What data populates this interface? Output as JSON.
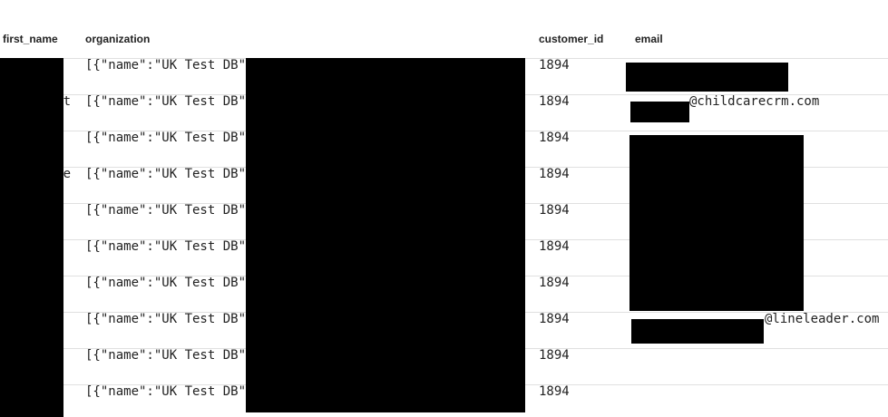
{
  "table": {
    "headers": [
      "first_name",
      "organization",
      "customer_id",
      "email"
    ],
    "rows": [
      [
        null,
        "[{\"name\":\"UK Test DB\"",
        1894,
        null
      ],
      [
        "t",
        "[{\"name\":\"UK Test DB\"",
        1894,
        "@childcarecrm.com"
      ],
      [
        null,
        "[{\"name\":\"UK Test DB\"",
        1894,
        null
      ],
      [
        "e",
        "[{\"name\":\"UK Test DB\"",
        1894,
        null
      ],
      [
        null,
        "[{\"name\":\"UK Test DB\"",
        1894,
        null
      ],
      [
        null,
        "[{\"name\":\"UK Test DB\"",
        1894,
        null
      ],
      [
        null,
        "[{\"name\":\"UK Test DB\"",
        1894,
        null
      ],
      [
        null,
        "[{\"name\":\"UK Test DB\"",
        1894,
        "@lineleader.com"
      ],
      [
        null,
        "[{\"name\":\"UK Test DB\"",
        1894,
        null
      ],
      [
        null,
        "[{\"name\":\"UK Test DB\"",
        1894,
        null
      ]
    ]
  }
}
